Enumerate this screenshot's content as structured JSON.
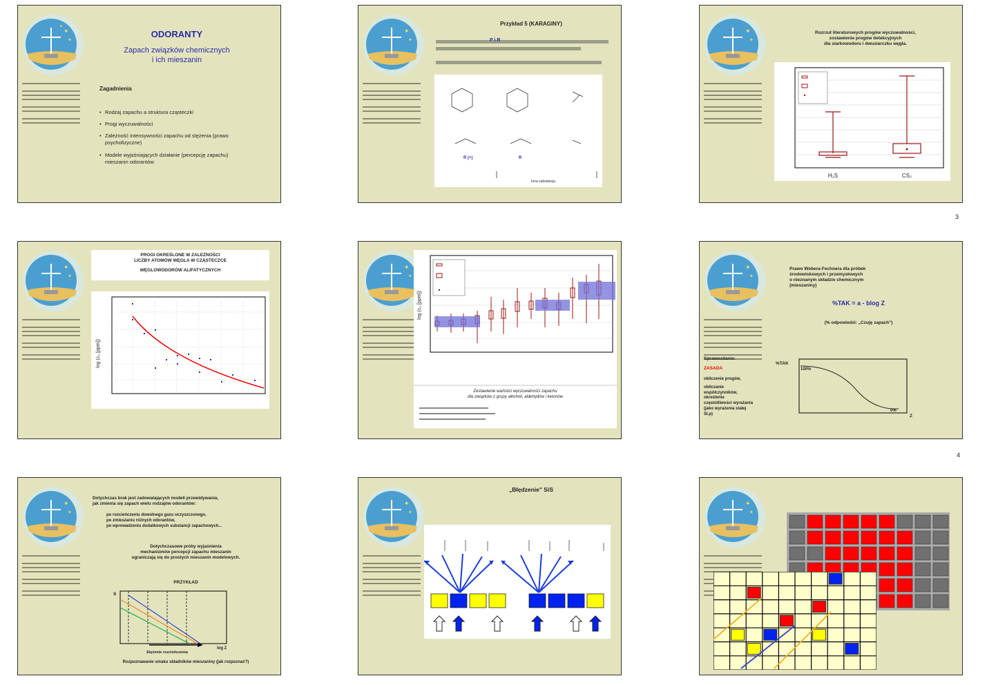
{
  "slide1": {
    "title": "ODORANTY",
    "subtitle_line1": "Zapach związków chemicznych",
    "subtitle_line2": "i ich mieszanin",
    "section": "Zagadnienia",
    "bullets": [
      "Rodzaj zapachu a struktura cząsteczki",
      "Progi wyczuwalności",
      "Zależność intensywności zapachu od stężenia (prawo psychofizyczne)",
      "Modele wyjaśniających działanie (percepcję zapachu) mieszanin odorantów"
    ]
  },
  "slide2": {
    "title": "Przykład 5 (KARAGINY)",
    "highlight_a": "P i R",
    "highlight_b": "R",
    "label_left": "R (+)",
    "label_mid": "R",
    "footer": "Inna substancja"
  },
  "slide3": {
    "caption_lines": [
      "Rozrzut literaturowych progów wyczuwalności,",
      "zostawienie progów detekcyjnych",
      "dla siarkowodoru i dwusiarczku węgla."
    ],
    "xcats": [
      "H₂S",
      "CS₂"
    ]
  },
  "slide4": {
    "title_lines": [
      "PROGI OKREŚLONE W ZALEŻNOŚCI",
      "LICZBY ATOMÓW WĘGLA W CZĄSTECZCE",
      "",
      "WĘGLOWODORÓW ALIFATYCZNYCH"
    ],
    "ylabel": "log (c₀ [ppm])"
  },
  "slide5": {
    "ylabel": "log (c₀ [ppm])",
    "caption_line1": "Zestawienie wartości wyczuwalności zapachu",
    "caption_line2": "dla związków z grupy alkoholi, aldehydów i ketonów"
  },
  "slide6": {
    "caption_lines": [
      "Prawo Webera-Fechnera dla próbek",
      "środowiskowych i przemysłowych",
      "o nieznanym składzie chemicznym",
      "(mieszaniny)"
    ],
    "formula": "%TAK = a - blog Z",
    "note": "(% odpowiedzi: „Czuję zapach\")",
    "side_label_1": "Sprawozdanie:",
    "side_label_red": "ZASADA",
    "side_lines": [
      "obliczenie progów,",
      "obliczanie",
      "współczynników,",
      "określenie",
      "częstotliwości wyrażania",
      "(jako wyrażenia stałej",
      "Sl.p)"
    ],
    "ylabel": "%TAK",
    "top_label": "100%",
    "bottom_label": "0%",
    "xlabel": "Z"
  },
  "slide7": {
    "text_lines": [
      "Dotychczas brak jest zadowalających modeli przewidywania,",
      "jak zmienia się zapach wielu rodzajów odorantów:"
    ],
    "bullets": [
      "po rozcieńczeniu dowolnego gazu oczyszczonego,",
      "po zmieszaniu różnych odorantów,",
      "po wprowadzeniu dodatkowych substancji zapachowych..."
    ],
    "para_lines": [
      "Dotychczasowe próby wyjaśnienia",
      "mechanizmów percepcji zapachu mieszanin",
      "ograniczają się do prostych mieszanin modelowych."
    ],
    "example": "PRZYKŁAD",
    "ylabel": "S",
    "xlabel": "log Z",
    "axis_caption": "Stężenie rozcieńczenia",
    "bottom": "Rozpoznawanie smaku składników mieszaniny (jak rozpoznać?)"
  },
  "slide8": {
    "title": "„Błędzenie\" SiS"
  },
  "colors": {
    "slide_bg": "#e3e4bd",
    "accent_blue": "#2a2aa8",
    "red": "#ff0000",
    "yellow": "#ffff00",
    "dark_red": "#9a1414"
  },
  "page_numbers": [
    "3",
    "4"
  ]
}
